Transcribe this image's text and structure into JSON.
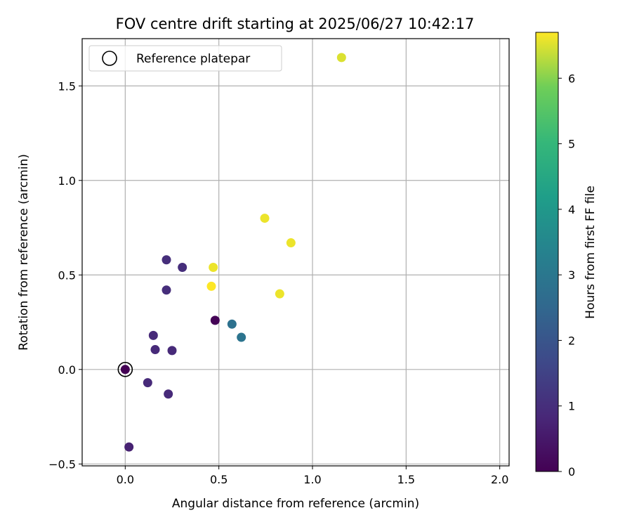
{
  "chart_data": {
    "type": "scatter",
    "title": "FOV centre drift starting at 2025/06/27 10:42:17",
    "xlabel": "Angular distance from reference (arcmin)",
    "ylabel": "Rotation from reference (arcmin)",
    "xlim": [
      -0.23,
      2.05
    ],
    "ylim": [
      -0.51,
      1.75
    ],
    "grid": true,
    "legend": {
      "location": "top-left",
      "entries": [
        "Reference platepar"
      ]
    },
    "xticks": [
      "0.0",
      "0.5",
      "1.0",
      "1.5",
      "2.0"
    ],
    "xtick_values": [
      0.0,
      0.5,
      1.0,
      1.5,
      2.0
    ],
    "yticks": [
      "−0.5",
      "0.0",
      "0.5",
      "1.0",
      "1.5"
    ],
    "ytick_values": [
      -0.5,
      0.0,
      0.5,
      1.0,
      1.5
    ],
    "colorbar": {
      "label": "Hours from first FF file",
      "colormap": "viridis",
      "range": [
        0,
        6.7
      ],
      "ticks": [
        "0",
        "1",
        "2",
        "3",
        "4",
        "5",
        "6"
      ],
      "tick_values": [
        0,
        1,
        2,
        3,
        4,
        5,
        6
      ]
    },
    "points": [
      {
        "x": 0.0,
        "y": 0.0,
        "hours": 0.0
      },
      {
        "x": 0.48,
        "y": 0.26,
        "hours": 0.05
      },
      {
        "x": 0.02,
        "y": -0.41,
        "hours": 0.7
      },
      {
        "x": 0.12,
        "y": -0.07,
        "hours": 0.9
      },
      {
        "x": 0.23,
        "y": -0.13,
        "hours": 0.9
      },
      {
        "x": 0.15,
        "y": 0.18,
        "hours": 0.9
      },
      {
        "x": 0.16,
        "y": 0.105,
        "hours": 0.9
      },
      {
        "x": 0.25,
        "y": 0.1,
        "hours": 0.9
      },
      {
        "x": 0.22,
        "y": 0.42,
        "hours": 1.0
      },
      {
        "x": 0.22,
        "y": 0.58,
        "hours": 1.0
      },
      {
        "x": 0.305,
        "y": 0.54,
        "hours": 1.0
      },
      {
        "x": 0.57,
        "y": 0.24,
        "hours": 2.8
      },
      {
        "x": 0.62,
        "y": 0.17,
        "hours": 2.9
      },
      {
        "x": 0.46,
        "y": 0.44,
        "hours": 6.7
      },
      {
        "x": 0.47,
        "y": 0.54,
        "hours": 6.6
      },
      {
        "x": 0.745,
        "y": 0.8,
        "hours": 6.6
      },
      {
        "x": 0.885,
        "y": 0.67,
        "hours": 6.6
      },
      {
        "x": 0.825,
        "y": 0.4,
        "hours": 6.6
      },
      {
        "x": 1.155,
        "y": 1.65,
        "hours": 6.5
      }
    ],
    "reference_point": {
      "x": 0.0,
      "y": 0.0
    }
  }
}
